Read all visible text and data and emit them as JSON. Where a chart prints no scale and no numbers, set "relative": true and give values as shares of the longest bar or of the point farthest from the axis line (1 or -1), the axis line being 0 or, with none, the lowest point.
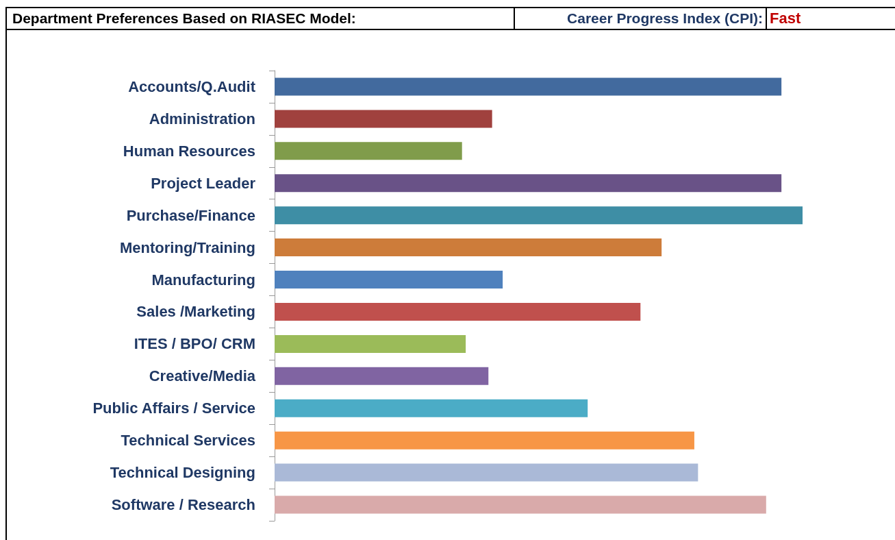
{
  "chart_data": {
    "type": "bar",
    "orientation": "horizontal",
    "relative": true,
    "title": "Department Preferences Based on RIASEC Model:",
    "annotations": [
      "Career Progress Index (CPI):",
      "Fast"
    ],
    "categories": [
      "Accounts/Q.Audit",
      "Administration",
      "Human Resources",
      "Project Leader",
      "Purchase/Finance",
      "Mentoring/Training",
      "Manufacturing",
      "Sales /Marketing",
      "ITES / BPO/ CRM",
      "Creative/Media",
      "Public Affairs / Service",
      "Technical Services",
      "Technical Designing",
      "Software / Research"
    ],
    "values": [
      0.96,
      0.412,
      0.355,
      0.96,
      1,
      0.733,
      0.432,
      0.693,
      0.362,
      0.405,
      0.593,
      0.795,
      0.802,
      0.931
    ],
    "colors": [
      "#426a9e",
      "#a0413e",
      "#809c4b",
      "#695287",
      "#3e8ea5",
      "#cd7c3a",
      "#4f81bd",
      "#c0504d",
      "#9bbb59",
      "#8064a2",
      "#4bacc6",
      "#f79646",
      "#aab9d7",
      "#d9aaaa"
    ]
  }
}
